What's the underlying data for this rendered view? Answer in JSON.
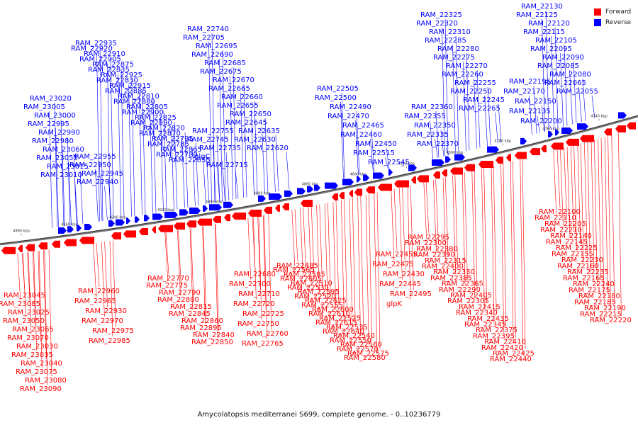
{
  "legend": {
    "forward": {
      "label": "Forward",
      "color": "#ff0000"
    },
    "reverse": {
      "label": "Reverse",
      "color": "#0000ff"
    }
  },
  "footer": "Amycolatopsis mediterranei S699, complete genome. - 0..10236779",
  "ticks": [
    "4980 kbp",
    "4960 kbp",
    "4940 kbp",
    "4920 kbp",
    "4900 kbp",
    "4880 kbp",
    "4860 kbp",
    "4840 kbp",
    "4820 kbp",
    "4800 kbp",
    "4780 kbp",
    "4760 kbp",
    "4740 kbp"
  ],
  "reverse_labels": [
    "RAM_22130",
    "RAM_22125",
    "RAM_22120",
    "RAM_22115",
    "RAM_22105",
    "RAM_22095",
    "RAM_22090",
    "RAM_22085",
    "RAM_22080",
    "RAM_22065",
    "RAM_22055",
    "RAM_22195",
    "RAM_22170",
    "RAM_22150",
    "RAM_22135",
    "RAM_22200",
    "RAM_22325",
    "RAM_22320",
    "RAM_22310",
    "RAM_22285",
    "RAM_22280",
    "RAM_22275",
    "RAM_22270",
    "RAM_22260",
    "RAM_22255",
    "RAM_22250",
    "RAM_22245",
    "RAM_22265",
    "RAM_22360",
    "RAM_22355",
    "RAM_22350",
    "RAM_22335",
    "RAM_22370",
    "RAM_22505",
    "RAM_22500",
    "RAM_22490",
    "RAM_22470",
    "RAM_22465",
    "RAM_22460",
    "RAM_22450",
    "RAM_22515",
    "RAM_22545",
    "RAM_22740",
    "RAM_22705",
    "RAM_22695",
    "RAM_22690",
    "RAM_22685",
    "RAM_22675",
    "RAM_22670",
    "RAM_22665",
    "RAM_22660",
    "RAM_22655",
    "RAM_22650",
    "RAM_22645",
    "RAM_22635",
    "RAM_22630",
    "RAM_22620",
    "RAM_22755",
    "RAM_22745",
    "RAM_22735",
    "glgC",
    "RAM_22715",
    "RAM_22935",
    "RAM_22920",
    "RAM_22910",
    "RAM_22905",
    "RAM_22875",
    "RAM_22835",
    "RAM_22925",
    "RAM_22830",
    "RAM_22915",
    "RAM_22885",
    "RAM_22810",
    "RAM_22880",
    "RAM_22805",
    "RAM_22900",
    "RAM_22825",
    "RAM_22890",
    "RAM_22820",
    "RAM_22870",
    "RAM_22795",
    "RAM_22785",
    "RAM_22865",
    "RAM_22780",
    "RAM_22855",
    "RAM_22955",
    "RAM_22950",
    "RAM_22945",
    "RAM_22940",
    "RAM_23020",
    "RAM_23005",
    "RAM_23000",
    "RAM_22995",
    "RAM_22990",
    "RAM_22980",
    "RAM_23060",
    "RAM_23055",
    "RAM_23015",
    "RAM_23010"
  ],
  "forward_labels": [
    "RAM_22100",
    "RAM_22110",
    "RAM_22205",
    "RAM_22210",
    "RAM_22140",
    "RAM_22145",
    "RAM_22225",
    "RAM_22155",
    "RAM_22230",
    "RAM_22160",
    "RAM_22235",
    "RAM_22165",
    "RAM_22240",
    "RAM_22175",
    "RAM_22180",
    "RAM_22185",
    "RAM_22190",
    "RAM_22215",
    "RAM_22220",
    "RAM_22295",
    "RAM_22300",
    "RAM_22380",
    "RAM_22390",
    "RAM_22315",
    "RAM_22400",
    "RAM_22330",
    "RAM_22385",
    "RAM_22365",
    "RAM_22290",
    "RAM_22405",
    "RAM_22305",
    "RAM_22415",
    "RAM_22340",
    "RAM_22435",
    "RAM_22345",
    "RAM_22375",
    "RAM_22395",
    "RAM_22410",
    "RAM_22420",
    "RAM_22425",
    "RAM_22440",
    "RAM_22455",
    "RAM_22475",
    "RAM_22430",
    "RAM_22445",
    "RAM_22495",
    "glpK",
    "RAM_22485",
    "RAM_22565",
    "RAM_22585",
    "RAM_22605",
    "RAM_22510",
    "RAM_22530",
    "RAM_22595",
    "RAM_22520",
    "RAM_22625",
    "RAM_22555",
    "RAM_22600",
    "RAM_22610",
    "RAM_22525",
    "RAM_22615",
    "RAM_22535",
    "RAM_22640",
    "RAM_22540",
    "RAM_22550",
    "RAM_22560",
    "RAM_22570",
    "RAM_22575",
    "RAM_22580",
    "RAM_22680",
    "RAM_22700",
    "RAM_22710",
    "RAM_22720",
    "RAM_22725",
    "RAM_22750",
    "RAM_22760",
    "RAM_22765",
    "RAM_22770",
    "RAM_22775",
    "RAM_22790",
    "RAM_22800",
    "RAM_22815",
    "RAM_22845",
    "RAM_22860",
    "RAM_22895",
    "RAM_22840",
    "RAM_22850",
    "RAM_22960",
    "RAM_22965",
    "RAM_22930",
    "RAM_22970",
    "RAM_22975",
    "RAM_22985",
    "RAM_23045",
    "RAM_23085",
    "RAM_23025",
    "RAM_23050",
    "RAM_23065",
    "RAM_23070",
    "RAM_23030",
    "RAM_23035",
    "RAM_23040",
    "RAM_23075",
    "RAM_23080",
    "RAM_23090"
  ]
}
